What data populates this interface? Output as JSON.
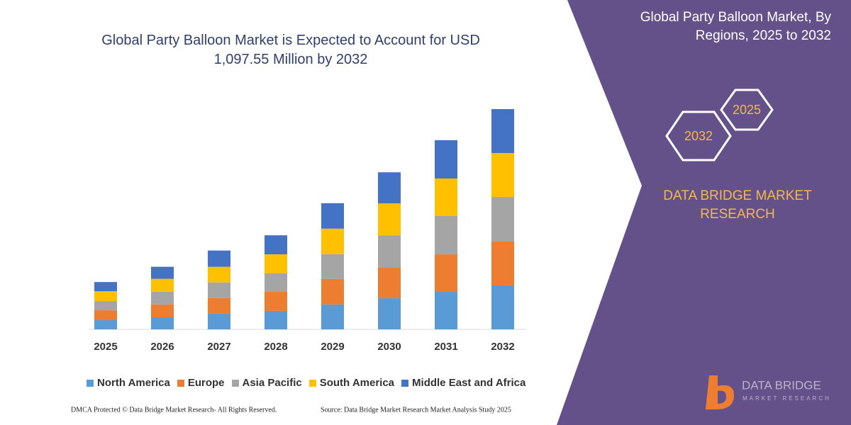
{
  "chart_data": {
    "type": "stacked_bar",
    "title": "Global Party Balloon Market is Expected to Account for USD 1,097.55 Million by 2032",
    "categories": [
      "2025",
      "2026",
      "2027",
      "2028",
      "2029",
      "2030",
      "2031",
      "2032"
    ],
    "series": [
      {
        "name": "North America",
        "color": "#5b9bd5",
        "values": [
          46,
          60,
          78,
          92,
          124,
          155,
          187,
          219
        ]
      },
      {
        "name": "Europe",
        "color": "#ed7d31",
        "values": [
          49,
          64,
          78,
          95,
          127,
          155,
          187,
          219
        ]
      },
      {
        "name": "Asia Pacific",
        "color": "#a5a5a5",
        "values": [
          46,
          64,
          78,
          92,
          124,
          159,
          191,
          222
        ]
      },
      {
        "name": "South America",
        "color": "#ffc000",
        "values": [
          49,
          64,
          78,
          95,
          127,
          159,
          187,
          219
        ]
      },
      {
        "name": "Middle East and Africa",
        "color": "#4472c4",
        "values": [
          46,
          60,
          81,
          95,
          127,
          155,
          191,
          219
        ]
      }
    ]
  },
  "panel": {
    "title": "Global Party Balloon Market, By Regions, 2025 to 2032",
    "hex_small": "2025",
    "hex_large": "2032",
    "brand": "DATA BRIDGE MARKET RESEARCH",
    "logo_name": "DATA BRIDGE",
    "logo_sub": "MARKET RESEARCH"
  },
  "footer": {
    "left": "DMCA Protected © Data Bridge Market Research-  All Rights Reserved.",
    "right": "Source: Data Bridge Market Research  Market Analysis Study 2025"
  }
}
